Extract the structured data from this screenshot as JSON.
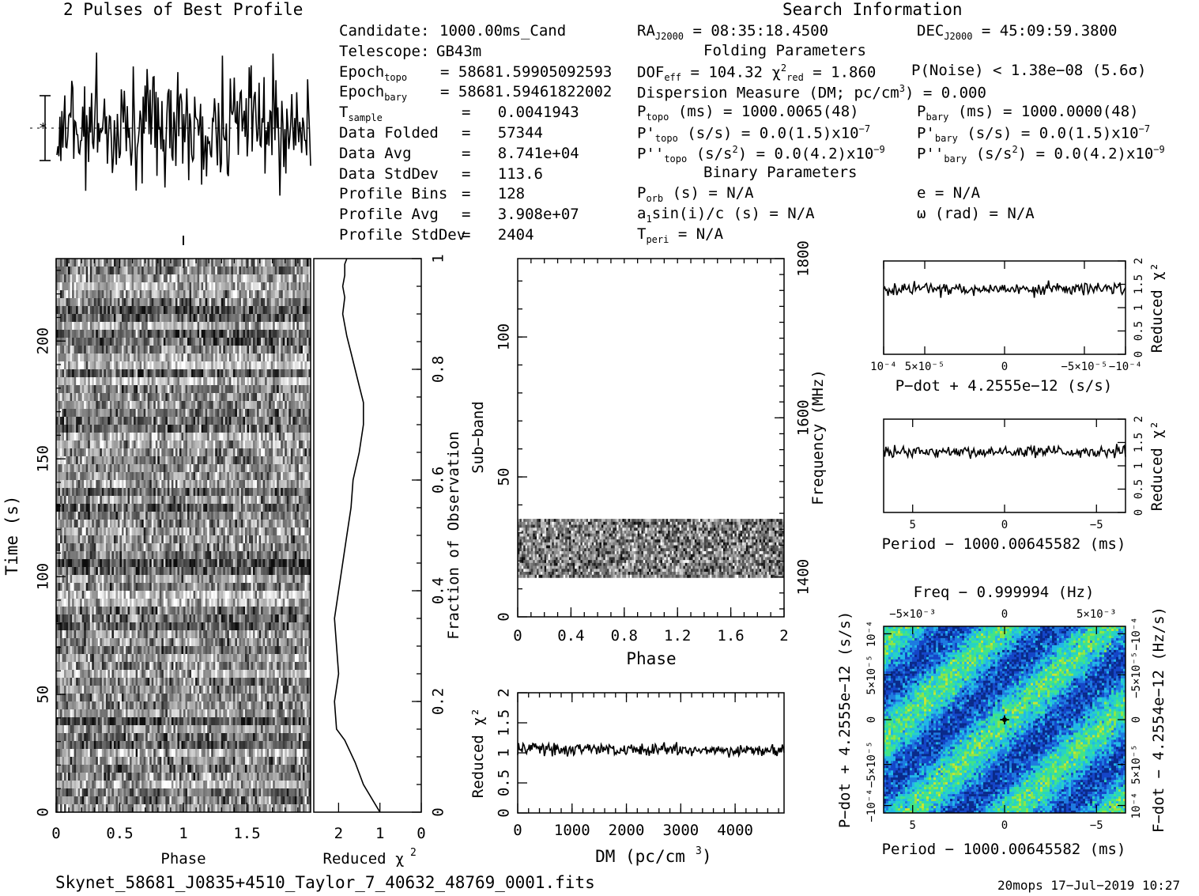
{
  "header": {
    "pulses_title": "2 Pulses of Best Profile",
    "search_title": "Search Information",
    "folding_title": "Folding Parameters",
    "binary_title": "Binary Parameters"
  },
  "candidate_info": [
    {
      "key": "Candidate:",
      "value": "1000.00ms_Cand"
    },
    {
      "key": "Telescope:",
      "value": "GB43m"
    },
    {
      "key": "Epoch",
      "sub": "topo",
      "value": "= 58681.59905092593"
    },
    {
      "key": "Epoch",
      "sub": "bary",
      "value": "= 58681.59461822002"
    },
    {
      "key": "T",
      "sub": "sample",
      "value": "=   0.0041943"
    },
    {
      "key": "Data Folded",
      "value": "=   57344"
    },
    {
      "key": "Data Avg",
      "value": "=   8.741e+04"
    },
    {
      "key": "Data StdDev",
      "value": "=   113.6"
    },
    {
      "key": "Profile Bins",
      "value": "=   128"
    },
    {
      "key": "Profile Avg",
      "value": "=   3.908e+07"
    },
    {
      "key": "Profile StdDev",
      "value": "=   2404"
    }
  ],
  "search_info": {
    "ra": "RA",
    "ra_sub": "J2000",
    "ra_value": "= 08:35:18.4500",
    "dec": "DEC",
    "dec_sub": "J2000",
    "dec_value": "= 45:09:59.3800",
    "dof": "DOF",
    "dof_sub": "eff",
    "dof_value": "= 104.32",
    "chi": "χ",
    "chi_sup": "2",
    "chi_sub": "red",
    "chi_value": "= 1.860",
    "pnoise": "P(Noise) < 1.38e−08  (5.6σ)",
    "dm": "Dispersion Measure (DM; pc/cm",
    "dm_sup": "3",
    "dm_value": ") = 0.000",
    "ptopo": "P",
    "ptopo_sub": "topo",
    "ptopo_value": "(ms) =  1000.0065(48)",
    "pbary": "P",
    "pbary_sub": "bary",
    "pbary_value": "(ms) =  1000.0000(48)",
    "pdtopo": "P'",
    "pdtopo_sub": "topo",
    "pdtopo_value": "(s/s) = 0.0(1.5)x10",
    "pdtopo_exp": "−7",
    "pdbary": "P'",
    "pdbary_sub": "bary",
    "pdbary_value": "(s/s) = 0.0(1.5)x10",
    "pdbary_exp": "−7",
    "pddtopo": "P''",
    "pddtopo_sub": "topo",
    "pddtopo_value": "(s/s",
    "pddtopo_value2": ") = 0.0(4.2)x10",
    "pddtopo_exp": "−9",
    "pddbary": "P''",
    "pddbary_sub": "bary",
    "pddbary_value": "(s/s",
    "pddbary_value2": ") = 0.0(4.2)x10",
    "pddbary_exp": "−9",
    "porb": "P",
    "porb_sub": "orb",
    "porb_value": "(s) = N/A",
    "ecc": "e = N/A",
    "a1": "a",
    "a1_sub": "1",
    "a1_value": "sin(i)/c (s) = N/A",
    "omega": "ω (rad) = N/A",
    "tperi": "T",
    "tperi_sub": "peri",
    "tperi_value": "= N/A"
  },
  "footer": {
    "filename": "Skynet_58681_J0835+4510_Taylor_7_40632_48769_0001.fits",
    "stamp": "20mops 17−Jul−2019 10:27"
  },
  "chart_data": [
    {
      "type": "line",
      "name": "profile",
      "title": "2 Pulses of Best Profile",
      "x": "phase 0–2",
      "note": "noisy profile, 256 points"
    },
    {
      "type": "heatmap",
      "name": "time-phase",
      "xlabel": "Phase",
      "ylabel": "Time (s)",
      "xlim": [
        0,
        2
      ],
      "ylim": [
        0,
        235
      ],
      "xticks": [
        "0",
        "0.5",
        "1",
        "1.5"
      ],
      "yticks": [
        "0",
        "50",
        "100",
        "150",
        "200"
      ]
    },
    {
      "type": "line",
      "name": "time-chi2",
      "xlabel": "Reduced χ²",
      "ylabel": "Fraction of Observation",
      "xticks": [
        "2",
        "1",
        "0"
      ],
      "yticks": [
        "0",
        "0.2",
        "0.4",
        "0.6",
        "0.8",
        "1"
      ],
      "x": [
        1,
        1.4,
        1.6,
        1.85,
        2.05,
        2.1,
        2.0,
        2.05,
        2.1,
        2.0,
        1.9,
        1.8,
        1.7,
        1.65,
        1.5,
        1.4,
        1.4,
        1.5,
        1.6,
        1.7,
        1.8,
        1.85,
        1.9,
        1.85,
        1.9,
        1.85,
        1.85,
        1.8
      ],
      "y": [
        0.0,
        0.05,
        0.09,
        0.13,
        0.15,
        0.2,
        0.25,
        0.3,
        0.35,
        0.4,
        0.45,
        0.5,
        0.55,
        0.6,
        0.65,
        0.7,
        0.74,
        0.77,
        0.8,
        0.83,
        0.86,
        0.88,
        0.9,
        0.93,
        0.95,
        0.97,
        0.99,
        1.0
      ]
    },
    {
      "type": "heatmap",
      "name": "subband-phase",
      "xlabel": "Phase",
      "ylabel": "Sub−band",
      "y2label": "Frequency (MHz)",
      "xticks": [
        "0",
        "0.4",
        "0.8",
        "1.2",
        "1.6",
        "2"
      ],
      "yticks": [
        "0",
        "50",
        "100"
      ],
      "y2ticks": [
        "1400",
        "1600",
        "1800"
      ],
      "ylim": [
        0,
        128
      ],
      "band": [
        14,
        35
      ]
    },
    {
      "type": "line",
      "name": "dm-chi2",
      "xlabel": "DM (pc/cm³)",
      "ylabel": "Reduced χ²",
      "xlim": [
        0,
        4900
      ],
      "ylim": [
        0,
        2
      ],
      "xticks": [
        "0",
        "1000",
        "2000",
        "3000",
        "4000"
      ],
      "yticks": [
        "0",
        "0.5",
        "1",
        "1.5",
        "2"
      ],
      "level": 1.05
    },
    {
      "type": "line",
      "name": "pdot-chi2",
      "xlabel": "P−dot + 4.2555e−12 (s/s)",
      "ylabel": "Reduced χ²",
      "xticks": [
        "10⁻⁴",
        "5×10⁻⁵",
        "0",
        "−5×10⁻⁵",
        "−10⁻⁴"
      ],
      "yticks": [
        "0",
        "0.5",
        "1",
        "1.5",
        "2"
      ],
      "ylim": [
        0,
        2
      ],
      "level": 1.4
    },
    {
      "type": "line",
      "name": "period-chi2",
      "xlabel": "Period − 1000.00645582 (ms)",
      "ylabel": "Reduced χ²",
      "xticks": [
        "5",
        "0",
        "−5"
      ],
      "yticks": [
        "0",
        "0.5",
        "1",
        "1.5",
        "2"
      ],
      "ylim": [
        0,
        2
      ],
      "level": 1.3
    },
    {
      "type": "heatmap",
      "name": "p-pdot",
      "title": "Freq − 0.999994 (Hz)",
      "xlabel": "Period − 1000.00645582 (ms)",
      "ylabel": "P−dot + 4.2555e−12 (s/s)",
      "y2label": "F−dot − 4.2554e−12 (Hz/s)",
      "xticks": [
        "5",
        "0",
        "−5"
      ],
      "x2ticks": [
        "−5×10⁻³",
        "0",
        "5×10⁻³"
      ],
      "yticks": [
        "10⁻⁴",
        "5×10⁻⁵",
        "0",
        "−5×10⁻⁵",
        "−10⁻⁴"
      ],
      "y2ticks": [
        "−10⁻⁴",
        "−5×10⁻⁵",
        "0",
        "5×10⁻⁵",
        "10⁻⁴"
      ]
    }
  ]
}
